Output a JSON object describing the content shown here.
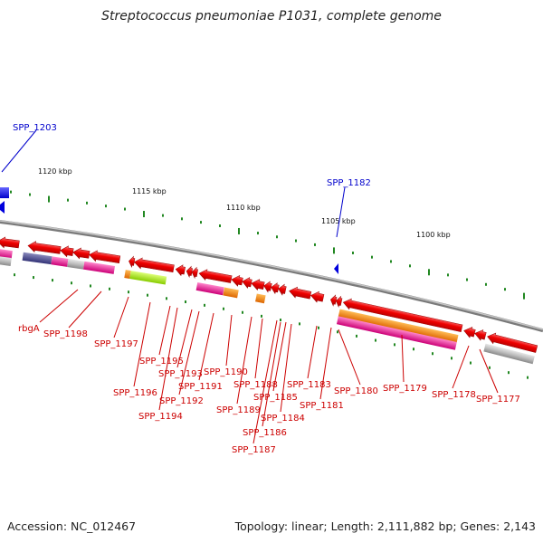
{
  "title": "Streptococcus pneumoniae P1031, complete genome",
  "footer": {
    "accession": "Accession: NC_012467",
    "summary": "Topology: linear; Length: 2,111,882 bp; Genes: 2,143"
  },
  "colors": {
    "gene": "#ee0000",
    "backbone": "#888888",
    "highlight_label": "#0000cc",
    "label": "#cc0000",
    "tick": "#228822"
  },
  "scale_ticks": [
    "1120 kbp",
    "1115 kbp",
    "1110 kbp",
    "1105 kbp",
    "1100 kbp"
  ],
  "highlighted_genes": [
    "SPP_1203",
    "SPP_1182"
  ],
  "gene_labels": [
    "rbgA",
    "SPP_1198",
    "SPP_1197",
    "SPP_1196",
    "SPP_1195",
    "SPP_1194",
    "SPP_1193",
    "SPP_1192",
    "SPP_1191",
    "SPP_1190",
    "SPP_1189",
    "SPP_1188",
    "SPP_1187",
    "SPP_1186",
    "SPP_1185",
    "SPP_1184",
    "SPP_1183",
    "SPP_1181",
    "SPP_1180",
    "SPP_1179",
    "SPP_1178",
    "SPP_1177"
  ]
}
